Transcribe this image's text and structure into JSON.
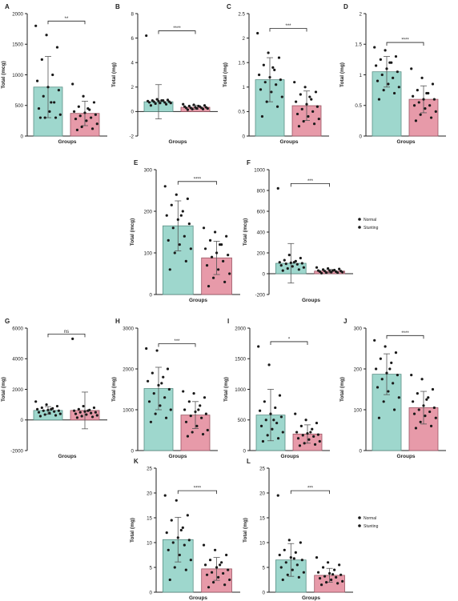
{
  "colors": {
    "normal": "#9ED7CD",
    "normal_stroke": "#5B8F86",
    "stunting": "#E79AA9",
    "stunting_stroke": "#9C5563",
    "point": "#1a1a1a",
    "axis": "#222222"
  },
  "chart_data": [
    {
      "panel": "A",
      "type": "bar",
      "ylabel": "Total (mcg)",
      "xlabel": "Groups",
      "ylim": [
        0,
        2000
      ],
      "yticks": [
        0,
        500,
        1000,
        1500,
        2000
      ],
      "sig": "**",
      "series": [
        {
          "mean": 800,
          "sd": 500,
          "points": [
            1800,
            1650,
            1450,
            1250,
            1000,
            900,
            800,
            750,
            650,
            550,
            450,
            400,
            350,
            300,
            300,
            300,
            550
          ]
        },
        {
          "mean": 370,
          "sd": 200,
          "points": [
            850,
            650,
            550,
            480,
            430,
            400,
            380,
            350,
            330,
            300,
            280,
            250,
            200,
            150,
            120,
            100,
            450
          ]
        }
      ]
    },
    {
      "panel": "B",
      "type": "bar",
      "ylabel": "Total (mg)",
      "xlabel": "Groups",
      "ylim": [
        -2,
        8
      ],
      "yticks": [
        -2,
        0,
        2,
        4,
        6,
        8
      ],
      "sig": "****",
      "series": [
        {
          "mean": 0.8,
          "sd": 1.4,
          "points": [
            6.2,
            1.0,
            0.95,
            0.9,
            0.9,
            0.85,
            0.85,
            0.8,
            0.8,
            0.75,
            0.75,
            0.7,
            0.7,
            0.65,
            0.6,
            0.5,
            0.9
          ]
        },
        {
          "mean": 0.35,
          "sd": 0.15,
          "points": [
            0.6,
            0.55,
            0.5,
            0.45,
            0.4,
            0.4,
            0.35,
            0.35,
            0.3,
            0.3,
            0.3,
            0.25,
            0.25,
            0.2,
            0.2,
            0.15,
            0.45
          ]
        }
      ]
    },
    {
      "panel": "C",
      "type": "bar",
      "ylabel": "Total (mg)",
      "xlabel": "Groups",
      "ylim": [
        0,
        2.5
      ],
      "yticks": [
        0,
        0.5,
        1.0,
        1.5,
        2.0,
        2.5
      ],
      "sig": "***",
      "series": [
        {
          "mean": 1.15,
          "sd": 0.45,
          "points": [
            2.1,
            1.7,
            1.6,
            1.45,
            1.35,
            1.25,
            1.2,
            1.15,
            1.1,
            1.05,
            0.95,
            0.9,
            0.8,
            0.7,
            0.6,
            0.4,
            1.4
          ]
        },
        {
          "mean": 0.62,
          "sd": 0.3,
          "points": [
            1.1,
            1.0,
            0.9,
            0.85,
            0.75,
            0.7,
            0.65,
            0.6,
            0.55,
            0.5,
            0.45,
            0.4,
            0.35,
            0.3,
            0.25,
            0.2,
            0.8
          ]
        }
      ]
    },
    {
      "panel": "D",
      "type": "bar",
      "ylabel": "Total (mg)",
      "xlabel": "Groups",
      "ylim": [
        0,
        2.0
      ],
      "yticks": [
        0,
        0.5,
        1.0,
        1.5,
        2.0
      ],
      "sig": "****",
      "series": [
        {
          "mean": 1.05,
          "sd": 0.25,
          "points": [
            1.45,
            1.4,
            1.3,
            1.25,
            1.2,
            1.15,
            1.1,
            1.05,
            1.0,
            0.95,
            0.9,
            0.85,
            0.8,
            0.75,
            0.7,
            0.6,
            1.2
          ]
        },
        {
          "mean": 0.6,
          "sd": 0.22,
          "points": [
            1.1,
            0.95,
            0.85,
            0.75,
            0.7,
            0.65,
            0.6,
            0.6,
            0.55,
            0.5,
            0.5,
            0.45,
            0.4,
            0.35,
            0.3,
            0.25,
            0.7
          ]
        }
      ]
    },
    {
      "panel": "E",
      "type": "bar",
      "ylabel": "Total (mcg)",
      "xlabel": "Groups",
      "ylim": [
        0,
        300
      ],
      "yticks": [
        0,
        100,
        200,
        300
      ],
      "sig": "****",
      "series": [
        {
          "mean": 165,
          "sd": 60,
          "points": [
            260,
            240,
            230,
            215,
            200,
            190,
            180,
            170,
            160,
            140,
            130,
            120,
            110,
            100,
            80,
            60,
            190
          ]
        },
        {
          "mean": 88,
          "sd": 40,
          "points": [
            160,
            150,
            140,
            130,
            120,
            110,
            100,
            95,
            90,
            80,
            70,
            60,
            50,
            40,
            30,
            20,
            120
          ]
        }
      ]
    },
    {
      "panel": "F",
      "type": "bar",
      "ylabel": "Total (mcg)",
      "xlabel": "Groups",
      "ylim": [
        -200,
        1000
      ],
      "yticks": [
        -200,
        0,
        200,
        400,
        600,
        800,
        1000
      ],
      "sig": "***",
      "legend": [
        "Normal",
        "Stunting"
      ],
      "series": [
        {
          "mean": 100,
          "sd": 190,
          "points": [
            820,
            180,
            150,
            130,
            120,
            110,
            105,
            100,
            95,
            90,
            80,
            70,
            60,
            50,
            40,
            30,
            110
          ]
        },
        {
          "mean": 25,
          "sd": 15,
          "points": [
            60,
            50,
            45,
            40,
            35,
            30,
            30,
            25,
            25,
            20,
            20,
            15,
            15,
            10,
            10,
            5,
            30
          ]
        }
      ]
    },
    {
      "panel": "G",
      "type": "bar",
      "ylabel": "Total (mg)",
      "xlabel": "Groups",
      "ylim": [
        -2000,
        6000
      ],
      "yticks": [
        -2000,
        0,
        2000,
        4000,
        6000
      ],
      "sig": "ns",
      "series": [
        {
          "mean": 620,
          "sd": 250,
          "points": [
            1200,
            1000,
            900,
            800,
            750,
            700,
            650,
            600,
            600,
            550,
            500,
            450,
            400,
            350,
            300,
            250,
            700
          ]
        },
        {
          "mean": 620,
          "sd": 1200,
          "points": [
            5300,
            900,
            800,
            700,
            650,
            600,
            550,
            500,
            500,
            450,
            400,
            350,
            300,
            250,
            200,
            150,
            600
          ]
        }
      ]
    },
    {
      "panel": "H",
      "type": "bar",
      "ylabel": "Total (mg)",
      "xlabel": "Groups",
      "ylim": [
        0,
        3000
      ],
      "yticks": [
        0,
        1000,
        2000,
        3000
      ],
      "sig": "***",
      "series": [
        {
          "mean": 1520,
          "sd": 520,
          "points": [
            2500,
            2450,
            2000,
            1900,
            1800,
            1700,
            1600,
            1500,
            1400,
            1300,
            1200,
            1100,
            1000,
            900,
            800,
            700,
            1650
          ]
        },
        {
          "mean": 870,
          "sd": 330,
          "points": [
            1450,
            1400,
            1300,
            1200,
            1100,
            1000,
            950,
            900,
            850,
            800,
            700,
            600,
            500,
            450,
            400,
            350,
            1000
          ]
        }
      ]
    },
    {
      "panel": "I",
      "type": "bar",
      "ylabel": "Total (mg)",
      "xlabel": "Groups",
      "ylim": [
        0,
        2000
      ],
      "yticks": [
        0,
        500,
        1000,
        1500,
        2000
      ],
      "sig": "*",
      "series": [
        {
          "mean": 580,
          "sd": 420,
          "points": [
            1700,
            1400,
            900,
            800,
            700,
            650,
            600,
            550,
            500,
            450,
            400,
            350,
            300,
            250,
            200,
            150,
            500
          ]
        },
        {
          "mean": 270,
          "sd": 150,
          "points": [
            600,
            500,
            450,
            400,
            350,
            300,
            280,
            260,
            250,
            230,
            200,
            180,
            150,
            120,
            100,
            80,
            300
          ]
        }
      ]
    },
    {
      "panel": "J",
      "type": "bar",
      "ylabel": "Total (mg)",
      "xlabel": "Groups",
      "ylim": [
        0,
        300
      ],
      "yticks": [
        0,
        100,
        200,
        300
      ],
      "sig": "****",
      "series": [
        {
          "mean": 187,
          "sd": 50,
          "points": [
            270,
            255,
            240,
            225,
            215,
            200,
            190,
            185,
            175,
            165,
            155,
            145,
            130,
            120,
            100,
            80,
            200
          ]
        },
        {
          "mean": 105,
          "sd": 40,
          "points": [
            185,
            175,
            150,
            140,
            130,
            120,
            110,
            105,
            100,
            95,
            90,
            85,
            80,
            70,
            60,
            55,
            125
          ]
        }
      ]
    },
    {
      "panel": "K",
      "type": "bar",
      "ylabel": "Total (mg)",
      "xlabel": "Groups",
      "ylim": [
        0,
        25
      ],
      "yticks": [
        0,
        5,
        10,
        15,
        20,
        25
      ],
      "sig": "****",
      "series": [
        {
          "mean": 10.6,
          "sd": 4.5,
          "points": [
            19.5,
            18.5,
            15.5,
            14.5,
            13.0,
            12.0,
            11.0,
            10.5,
            10.0,
            9.5,
            8.5,
            7.5,
            6.5,
            5.0,
            4.5,
            2.5,
            12.5
          ]
        },
        {
          "mean": 4.7,
          "sd": 2.3,
          "points": [
            9.5,
            8.5,
            7.5,
            6.5,
            6.0,
            5.5,
            5.0,
            4.5,
            4.0,
            3.8,
            3.5,
            3.0,
            2.5,
            2.0,
            1.5,
            1.0,
            5.5
          ]
        }
      ]
    },
    {
      "panel": "L",
      "type": "bar",
      "ylabel": "Total (mg)",
      "xlabel": "Groups",
      "ylim": [
        0,
        25
      ],
      "yticks": [
        0,
        5,
        10,
        15,
        20,
        25
      ],
      "sig": "***",
      "legend": [
        "Normal",
        "Stunting"
      ],
      "series": [
        {
          "mean": 6.5,
          "sd": 3.3,
          "points": [
            19.5,
            10.5,
            10.0,
            8.5,
            8.0,
            7.5,
            7.0,
            6.5,
            6.0,
            5.5,
            5.0,
            4.5,
            4.0,
            3.5,
            3.0,
            2.5,
            6.8
          ]
        },
        {
          "mean": 3.4,
          "sd": 1.4,
          "points": [
            7.0,
            6.0,
            5.5,
            5.0,
            4.5,
            4.0,
            3.8,
            3.5,
            3.2,
            3.0,
            2.8,
            2.5,
            2.2,
            2.0,
            1.8,
            1.5,
            3.6
          ]
        }
      ]
    }
  ]
}
